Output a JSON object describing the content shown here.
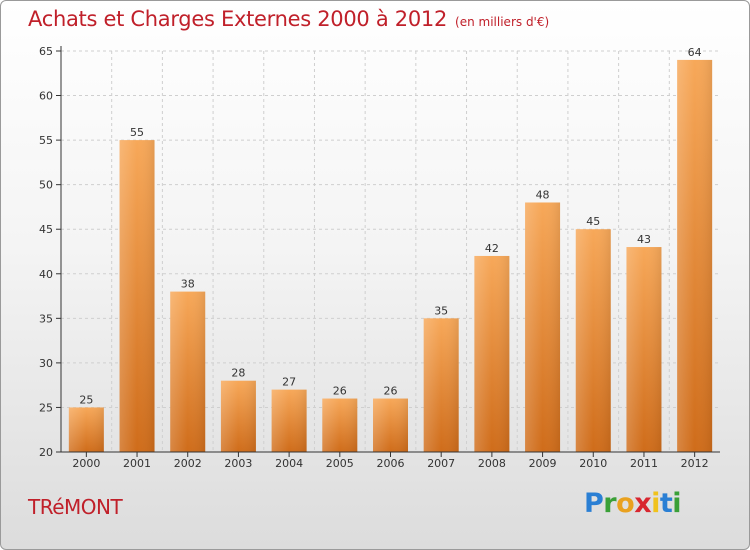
{
  "header": {
    "title": "Achats et Charges Externes 2000 à 2012",
    "subtitle": "(en milliers d'€)"
  },
  "footer": {
    "place": "TRéMONT",
    "brand": "Proxiti"
  },
  "colors": {
    "title": "#c0202a",
    "bar_light": "#f7a859",
    "bar_dark": "#cf6c1a",
    "axis": "#333333",
    "grid": "#d0d0d0"
  },
  "chart_data": {
    "type": "bar",
    "title": "Achats et Charges Externes 2000 à 2012",
    "subtitle": "(en milliers d'€)",
    "categories": [
      "2000",
      "2001",
      "2002",
      "2003",
      "2004",
      "2005",
      "2006",
      "2007",
      "2008",
      "2009",
      "2010",
      "2011",
      "2012"
    ],
    "values": [
      25,
      55,
      38,
      28,
      27,
      26,
      26,
      35,
      42,
      48,
      45,
      43,
      64
    ],
    "ylim": [
      20,
      65
    ],
    "yticks": [
      20,
      25,
      30,
      35,
      40,
      45,
      50,
      55,
      60,
      65
    ],
    "grid": true,
    "data_labels": true
  }
}
